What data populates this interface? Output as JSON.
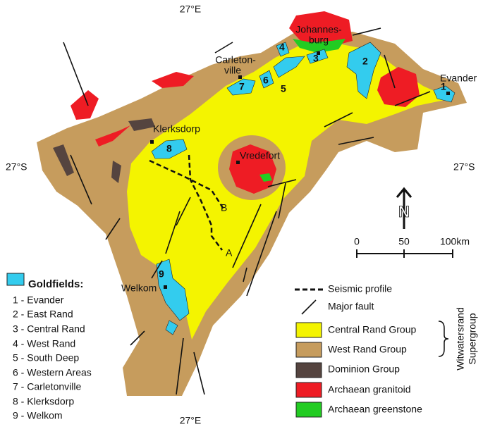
{
  "coordinates": {
    "top": "27°E",
    "bottom": "27°E",
    "left": "27°S",
    "right": "27°S"
  },
  "places": {
    "johannesburg": [
      "Johannes-",
      "burg"
    ],
    "carletonville": [
      "Carleton-",
      "ville"
    ],
    "evander": "Evander",
    "klerksdorp": "Klerksdorp",
    "vredefort": "Vredefort",
    "welkom": "Welkom"
  },
  "goldfield_numbers": [
    "1",
    "2",
    "3",
    "4",
    "5",
    "6",
    "7",
    "8",
    "9"
  ],
  "seismic_labels": [
    "A",
    "B"
  ],
  "scale": [
    "0",
    "50",
    "100km"
  ],
  "north": "N",
  "goldfields_legend": {
    "title": "Goldfields:",
    "items": [
      "1 - Evander",
      "2 - East Rand",
      "3 - Central Rand",
      "4 - West Rand",
      "5 - South Deep",
      "6 - Western Areas",
      "7 - Carletonville",
      "8 - Klerksdorp",
      "9 - Welkom"
    ]
  },
  "legend": {
    "lines": [
      "Seismic profile",
      "Major fault"
    ],
    "units": [
      "Central Rand Group",
      "West Rand Group",
      "Dominion Group",
      "Archaean granitoid",
      "Archaean greenstone"
    ],
    "group_label": [
      "Witwatersrand",
      "Supergroup"
    ]
  }
}
